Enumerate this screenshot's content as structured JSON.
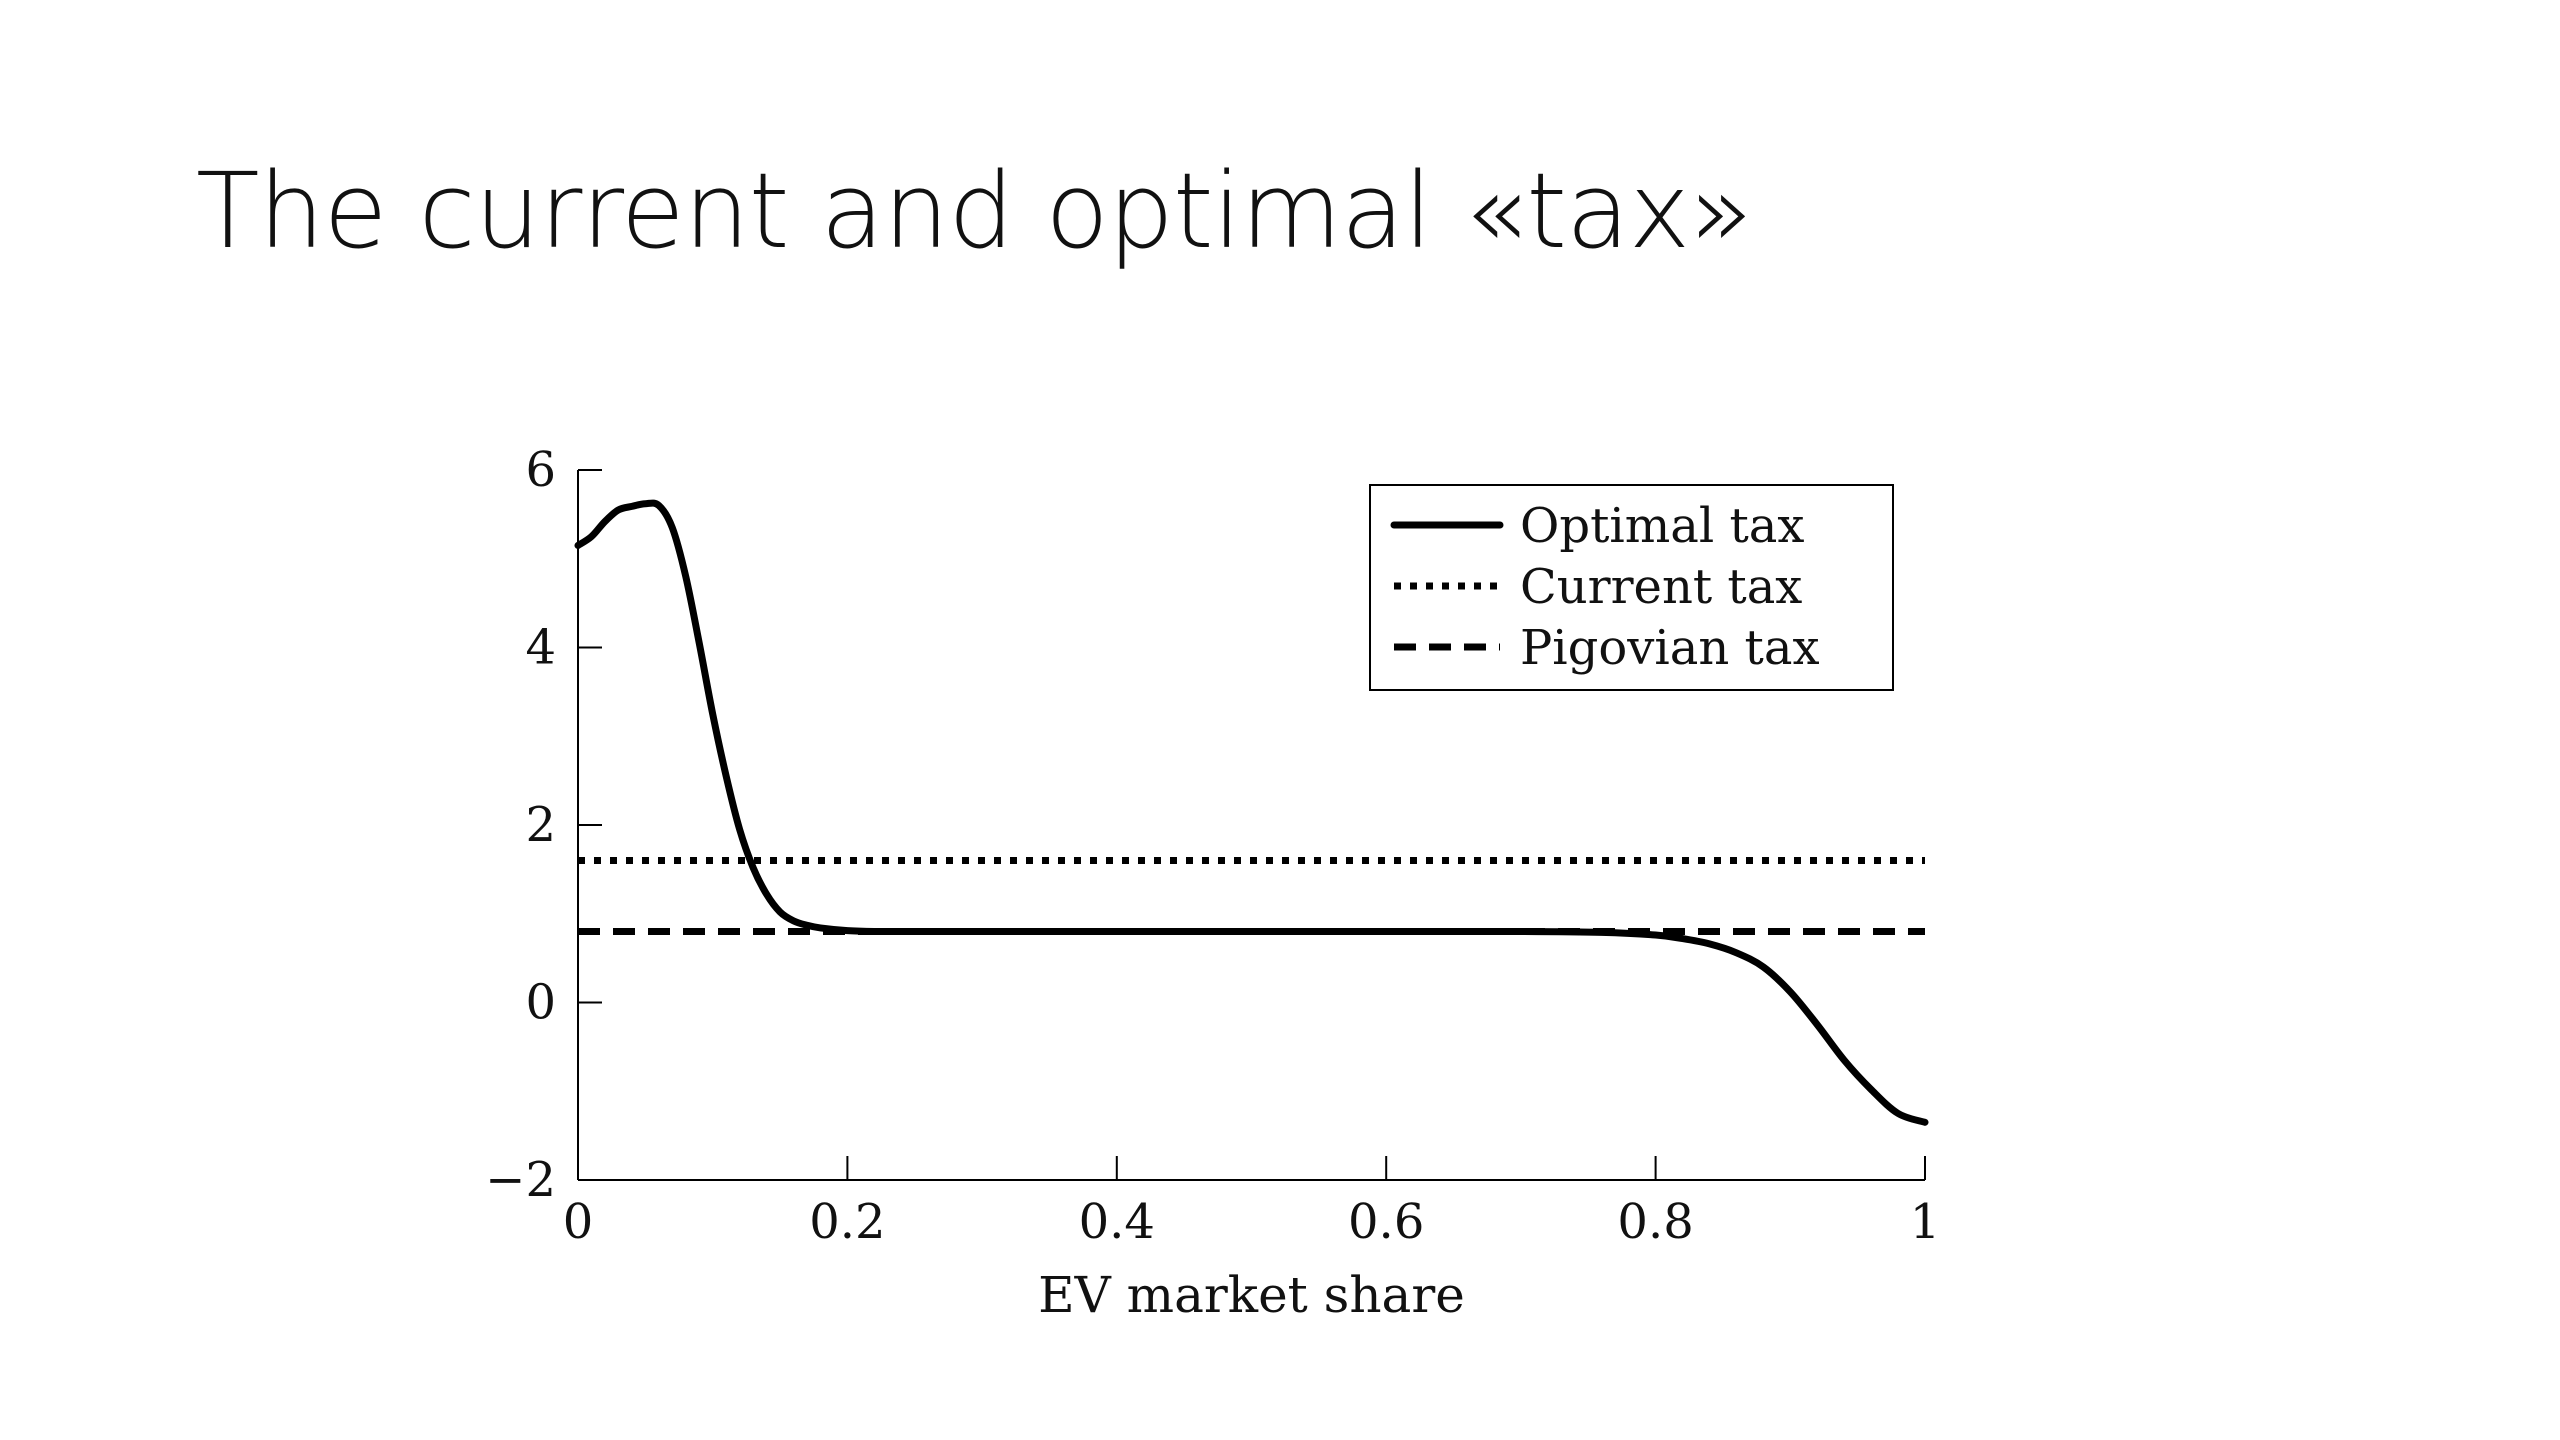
{
  "slide": {
    "title": "The current and optimal «tax»"
  },
  "chart_data": {
    "type": "line",
    "title": "",
    "xlabel": "EV market share",
    "ylabel": "",
    "xlim": [
      0,
      1
    ],
    "ylim": [
      -2,
      6
    ],
    "xticks": [
      0,
      0.2,
      0.4,
      0.6,
      0.8,
      1
    ],
    "xtick_labels": [
      "0",
      "0.2",
      "0.4",
      "0.6",
      "0.8",
      "1"
    ],
    "yticks": [
      -2,
      0,
      2,
      4,
      6
    ],
    "ytick_labels": [
      "−2",
      "0",
      "2",
      "4",
      "6"
    ],
    "grid": false,
    "legend_position": "top-right",
    "series": [
      {
        "name": "Optimal tax",
        "style": "solid",
        "x": [
          0,
          0.01,
          0.02,
          0.03,
          0.04,
          0.05,
          0.06,
          0.07,
          0.08,
          0.09,
          0.1,
          0.11,
          0.12,
          0.13,
          0.14,
          0.15,
          0.16,
          0.17,
          0.18,
          0.2,
          0.22,
          0.25,
          0.3,
          0.4,
          0.5,
          0.6,
          0.7,
          0.76,
          0.8,
          0.82,
          0.84,
          0.86,
          0.88,
          0.9,
          0.92,
          0.94,
          0.96,
          0.98,
          1.0
        ],
        "y": [
          5.15,
          5.25,
          5.42,
          5.55,
          5.59,
          5.62,
          5.6,
          5.35,
          4.8,
          4.05,
          3.25,
          2.55,
          1.95,
          1.52,
          1.22,
          1.02,
          0.92,
          0.87,
          0.84,
          0.81,
          0.8,
          0.8,
          0.8,
          0.8,
          0.8,
          0.8,
          0.8,
          0.79,
          0.76,
          0.72,
          0.66,
          0.56,
          0.4,
          0.12,
          -0.25,
          -0.65,
          -0.98,
          -1.25,
          -1.35
        ]
      },
      {
        "name": "Current tax",
        "style": "dotted",
        "x": [
          0,
          1
        ],
        "y": [
          1.6,
          1.6
        ]
      },
      {
        "name": "Pigovian tax",
        "style": "dashed",
        "x": [
          0,
          1
        ],
        "y": [
          0.8,
          0.8
        ]
      }
    ],
    "colors": {
      "line": "#000000",
      "text": "#111111"
    }
  }
}
